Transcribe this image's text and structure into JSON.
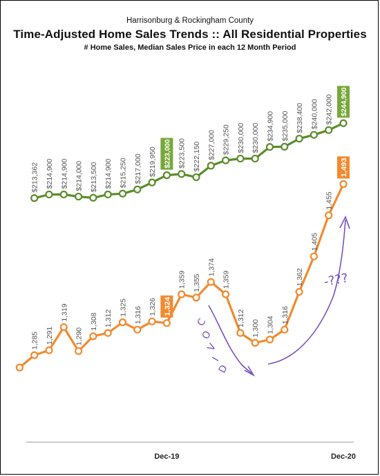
{
  "header": {
    "supertitle": "Harrisonburg & Rockingham County",
    "title": "Time-Adjusted Home Sales Trends  ::  All Residential Properties",
    "subtitle": "# Home Sales, Median Sales Price in each 12 Month Period"
  },
  "chart_data": {
    "type": "line",
    "title": "Time-Adjusted Home Sales Trends  ::  All Residential Properties",
    "subtitle": "# Home Sales, Median Sales Price in each 12 Month Period",
    "x_tick_labels": [
      {
        "index": 9,
        "label": "Dec-19"
      },
      {
        "index": 21,
        "label": "Dec-20"
      }
    ],
    "grid": false,
    "legend": "none",
    "series": [
      {
        "color": "#5b8c2a",
        "highlight_color": "#77a83a",
        "values": [
          213362,
          214900,
          214900,
          214000,
          213500,
          214900,
          215250,
          217000,
          219950,
          223000,
          223500,
          222150,
          227000,
          229250,
          230000,
          230000,
          234900,
          235000,
          238400,
          240000,
          242000,
          244900
        ],
        "labels": [
          "$213,362",
          "$214,900",
          "$214,900",
          "$214,000",
          "$213,500",
          "$214,900",
          "$215,250",
          "$217,000",
          "$219,950",
          "$223,000",
          "$223,500",
          "$222,150",
          "$227,000",
          "$229,250",
          "$230,000",
          "$230,000",
          "$234,900",
          "$235,000",
          "$238,400",
          "$240,000",
          "$242,000",
          "$244,900"
        ],
        "highlight_indices": [
          9,
          21
        ]
      },
      {
        "color": "#f28a2e",
        "highlight_color": "#f28a2e",
        "values": [
          1270,
          1285,
          1291,
          1319,
          1290,
          1308,
          1312,
          1325,
          1316,
          1326,
          1324,
          1359,
          1355,
          1374,
          1359,
          1312,
          1300,
          1304,
          1316,
          1362,
          1405,
          1455,
          1493
        ],
        "labels": [
          "",
          "1,285",
          "1,291",
          "1,319",
          "1,290",
          "1,308",
          "1,312",
          "1,325",
          "1,316",
          "1,326",
          "1,324",
          "1,359",
          "1,355",
          "1,374",
          "1,359",
          "1,312",
          "1,300",
          "1,304",
          "1,316",
          "1,362",
          "1,405",
          "1,455",
          "1,493"
        ],
        "highlight_indices": [
          10,
          22
        ]
      }
    ],
    "annotations": [
      {
        "text": "COVID",
        "style": "handwritten",
        "color": "#7a4fc0"
      },
      {
        "text": "-???",
        "style": "handwritten",
        "color": "#7a4fc0"
      }
    ]
  }
}
